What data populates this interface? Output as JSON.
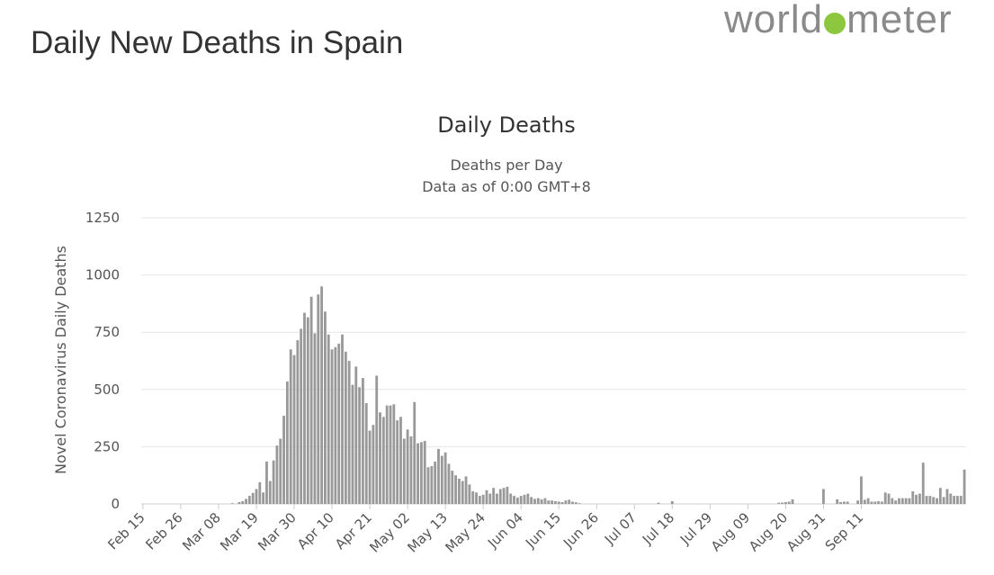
{
  "page": {
    "title": "Daily New Deaths in Spain",
    "logo_text_1": "world",
    "logo_text_2": "meter"
  },
  "colors": {
    "bar": "#999999",
    "grid": "#e6e6e6",
    "accent": "#8dc63f"
  },
  "chart_data": {
    "type": "bar",
    "title": "Daily Deaths",
    "subtitle_1": "Deaths per Day",
    "subtitle_2": "Data as of 0:00 GMT+8",
    "ylabel": "Novel Coronavirus Daily Deaths",
    "xlabel": "",
    "ylim": [
      0,
      1250
    ],
    "yticks": [
      0,
      250,
      500,
      750,
      1000,
      1250
    ],
    "x_start": "Feb 15",
    "xtick_labels": [
      "Feb 15",
      "Feb 26",
      "Mar 08",
      "Mar 19",
      "Mar 30",
      "Apr 10",
      "Apr 21",
      "May 02",
      "May 13",
      "May 24",
      "Jun 04",
      "Jun 15",
      "Jun 26",
      "Jul 07",
      "Jul 18",
      "Jul 29",
      "Aug 09",
      "Aug 20",
      "Aug 31",
      "Sep 11"
    ],
    "xtick_step_days": 11,
    "values": [
      0,
      0,
      0,
      0,
      0,
      0,
      0,
      0,
      0,
      0,
      0,
      0,
      0,
      0,
      0,
      0,
      0,
      0,
      0,
      0,
      0,
      0,
      0,
      0,
      0,
      0,
      3,
      0,
      8,
      12,
      22,
      35,
      48,
      65,
      95,
      50,
      185,
      100,
      190,
      255,
      285,
      385,
      535,
      675,
      650,
      715,
      765,
      835,
      815,
      905,
      745,
      915,
      950,
      840,
      740,
      675,
      685,
      700,
      740,
      665,
      625,
      520,
      600,
      510,
      550,
      440,
      320,
      345,
      560,
      400,
      380,
      430,
      430,
      435,
      365,
      380,
      285,
      325,
      295,
      445,
      265,
      270,
      275,
      160,
      165,
      185,
      240,
      210,
      225,
      175,
      145,
      125,
      110,
      100,
      120,
      85,
      55,
      50,
      35,
      40,
      60,
      45,
      70,
      45,
      65,
      70,
      75,
      45,
      35,
      28,
      35,
      40,
      45,
      30,
      22,
      25,
      20,
      25,
      15,
      15,
      12,
      10,
      8,
      15,
      18,
      10,
      7,
      3,
      0,
      0,
      0,
      0,
      0,
      0,
      0,
      0,
      0,
      0,
      0,
      0,
      0,
      0,
      0,
      0,
      0,
      0,
      0,
      0,
      0,
      0,
      5,
      0,
      0,
      0,
      12,
      0,
      0,
      0,
      0,
      0,
      0,
      0,
      0,
      0,
      0,
      0,
      0,
      0,
      0,
      0,
      0,
      0,
      0,
      0,
      0,
      0,
      0,
      0,
      0,
      0,
      0,
      0,
      0,
      0,
      0,
      5,
      6,
      8,
      10,
      20,
      0,
      0,
      0,
      0,
      0,
      0,
      0,
      0,
      65,
      0,
      0,
      0,
      20,
      8,
      10,
      10,
      0,
      0,
      15,
      120,
      18,
      25,
      10,
      10,
      12,
      10,
      50,
      45,
      25,
      15,
      25,
      25,
      25,
      25,
      55,
      40,
      45,
      180,
      35,
      35,
      30,
      25,
      70,
      30,
      65,
      45,
      35,
      35,
      35,
      150
    ]
  }
}
